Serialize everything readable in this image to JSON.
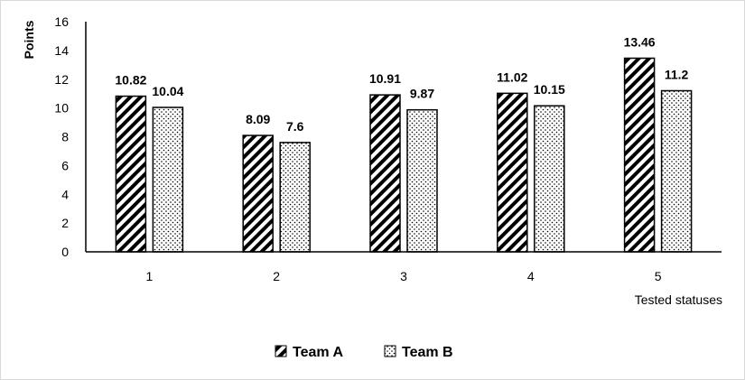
{
  "chart_data": {
    "type": "bar",
    "categories": [
      "1",
      "2",
      "3",
      "4",
      "5"
    ],
    "series": [
      {
        "name": "Team A",
        "values": [
          10.82,
          8.09,
          10.91,
          11.02,
          13.46
        ],
        "pattern": "diagonal-stripes"
      },
      {
        "name": "Team B",
        "values": [
          10.04,
          7.6,
          9.87,
          10.15,
          11.2
        ],
        "pattern": "dots"
      }
    ],
    "data_labels": [
      [
        "10.82",
        "8.09",
        "10.91",
        "11.02",
        "13.46"
      ],
      [
        "10.04",
        "7.6",
        "9.87",
        "10.15",
        "11.2"
      ]
    ],
    "xlabel": "Tested statuses",
    "ylabel": "Points",
    "ylim": [
      0,
      16
    ],
    "yticks": [
      "0",
      "2",
      "4",
      "6",
      "8",
      "10",
      "12",
      "14",
      "16"
    ],
    "grid": false,
    "legend": "bottom-center",
    "colors": {
      "bar_stroke": "#000000",
      "pattern": "#000000",
      "axis": "#000000",
      "background": "#ffffff"
    }
  }
}
